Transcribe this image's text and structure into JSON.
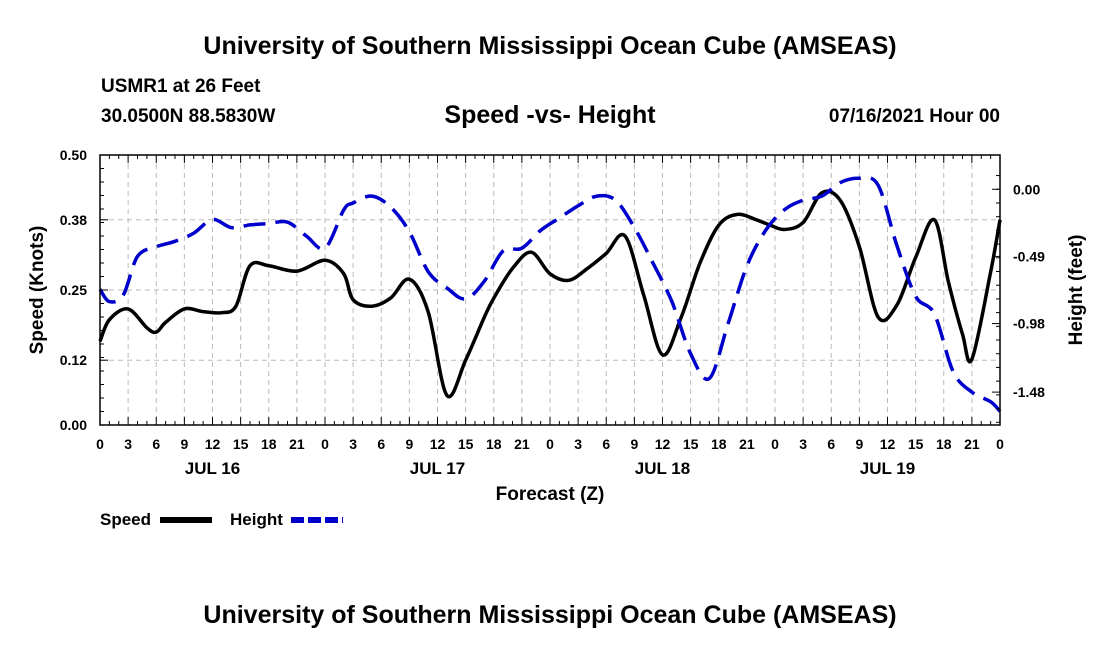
{
  "header": {
    "title_top": "University of Southern Mississippi Ocean Cube (AMSEAS)",
    "station": "USMR1 at 26 Feet",
    "location": "30.0500N  88.5830W",
    "plot_title": "Speed -vs- Height",
    "datetime": "07/16/2021 Hour 00",
    "title_bottom": "University of Southern Mississippi Ocean Cube (AMSEAS)"
  },
  "legend": {
    "speed_label": "Speed",
    "height_label": "Height"
  },
  "colors": {
    "speed": "#000000",
    "height": "#0000cc",
    "grid": "#bbbbbb"
  },
  "chart_data": {
    "type": "line",
    "xlabel": "Forecast (Z)",
    "ylabel_left": "Speed (Knots)",
    "ylabel_right": "Height (feet)",
    "x_range_hours": [
      0,
      96
    ],
    "x_tick_step_hours": 3,
    "x_tick_labels": [
      "0",
      "3",
      "6",
      "9",
      "12",
      "15",
      "18",
      "21",
      "0",
      "3",
      "6",
      "9",
      "12",
      "15",
      "18",
      "21",
      "0",
      "3",
      "6",
      "9",
      "12",
      "15",
      "18",
      "21",
      "0",
      "3",
      "6",
      "9",
      "12",
      "15",
      "18",
      "21",
      "0"
    ],
    "day_labels": [
      {
        "label": "JUL 16",
        "hour": 12
      },
      {
        "label": "JUL 17",
        "hour": 36
      },
      {
        "label": "JUL 18",
        "hour": 60
      },
      {
        "label": "JUL 19",
        "hour": 84
      }
    ],
    "y_left": {
      "range": [
        0.0,
        0.5
      ],
      "ticks": [
        0.0,
        0.12,
        0.25,
        0.38,
        0.5
      ],
      "tick_labels": [
        "0.00",
        "0.12",
        "0.25",
        "0.38",
        "0.50"
      ]
    },
    "y_right": {
      "range": [
        -1.72,
        0.25
      ],
      "ticks": [
        0.0,
        -0.49,
        -0.98,
        -1.48
      ],
      "tick_labels": [
        "0.00",
        "-0.49",
        "-0.98",
        "-1.48"
      ]
    },
    "grid": true,
    "series": [
      {
        "name": "Speed",
        "axis": "left",
        "style": "solid",
        "x": [
          0,
          1,
          3,
          5,
          6,
          7,
          9,
          11,
          13,
          14.5,
          16,
          18,
          21,
          24,
          26,
          27,
          29,
          31,
          33,
          35,
          37,
          39,
          41,
          42,
          44,
          46,
          48,
          50,
          52,
          54,
          56,
          58,
          60,
          62,
          64,
          66,
          68,
          70,
          71.5,
          73,
          75,
          77,
          79,
          81,
          83,
          85,
          87,
          89,
          90.5,
          92,
          93,
          95,
          96
        ],
        "values": [
          0.155,
          0.195,
          0.215,
          0.18,
          0.172,
          0.19,
          0.215,
          0.21,
          0.208,
          0.22,
          0.295,
          0.295,
          0.285,
          0.305,
          0.28,
          0.232,
          0.22,
          0.235,
          0.27,
          0.21,
          0.055,
          0.12,
          0.2,
          0.235,
          0.29,
          0.32,
          0.28,
          0.268,
          0.29,
          0.318,
          0.35,
          0.24,
          0.13,
          0.2,
          0.3,
          0.37,
          0.39,
          0.38,
          0.37,
          0.362,
          0.375,
          0.43,
          0.415,
          0.33,
          0.2,
          0.222,
          0.31,
          0.38,
          0.265,
          0.168,
          0.122,
          0.283,
          0.38
        ]
      },
      {
        "name": "Height",
        "axis": "right",
        "style": "dashed",
        "x": [
          0,
          1,
          2.5,
          4,
          6,
          8,
          10,
          12,
          14,
          16,
          18,
          20,
          22,
          24,
          26,
          27,
          29,
          31,
          33,
          35,
          37,
          39,
          41,
          43,
          45,
          47,
          49,
          51,
          53,
          55,
          57,
          59,
          61,
          63,
          65,
          67,
          69,
          71,
          73,
          75,
          77,
          79,
          81,
          83,
          85,
          87,
          89,
          91,
          93,
          95,
          96
        ],
        "values": [
          -0.73,
          -0.82,
          -0.77,
          -0.49,
          -0.42,
          -0.38,
          -0.32,
          -0.22,
          -0.28,
          -0.26,
          -0.25,
          -0.24,
          -0.34,
          -0.43,
          -0.15,
          -0.1,
          -0.05,
          -0.13,
          -0.31,
          -0.6,
          -0.72,
          -0.8,
          -0.67,
          -0.45,
          -0.43,
          -0.3,
          -0.21,
          -0.12,
          -0.05,
          -0.08,
          -0.28,
          -0.54,
          -0.82,
          -1.2,
          -1.38,
          -0.98,
          -0.56,
          -0.3,
          -0.15,
          -0.08,
          -0.05,
          0.05,
          0.08,
          0.03,
          -0.41,
          -0.78,
          -0.91,
          -1.33,
          -1.48,
          -1.55,
          -1.62
        ]
      }
    ]
  }
}
